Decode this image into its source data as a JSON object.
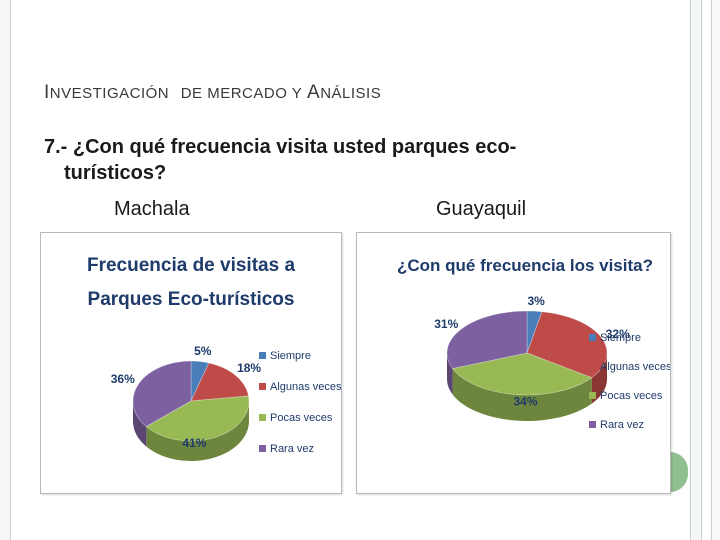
{
  "header": {
    "title_part1_cap": "I",
    "title_part1_rest": "NVESTIGACIÓN",
    "title_part2": "DE MERCADO Y",
    "title_part3_cap": "A",
    "title_part3_rest": "NÁLISIS"
  },
  "question": {
    "line1": "7.- ¿Con qué frecuencia visita usted parques eco-",
    "line2": "turísticos?"
  },
  "cities": {
    "left": "Machala",
    "right": "Guayaquil"
  },
  "chart_data": [
    {
      "type": "pie",
      "title_lines": [
        "Frecuencia de visitas a",
        "Parques Eco-turísticos"
      ],
      "categories": [
        "Siempre",
        "Algunas veces",
        "Pocas veces",
        "Rara vez"
      ],
      "values": [
        5,
        18,
        41,
        36
      ],
      "labels": [
        "5%",
        "18%",
        "41%",
        "36%"
      ],
      "colors": [
        "#4a7ebb",
        "#be4b48",
        "#98b954",
        "#7d60a0"
      ],
      "legend_position": "right"
    },
    {
      "type": "pie",
      "title_lines": [
        "¿Con qué frecuencia los visita?"
      ],
      "categories": [
        "Siempre",
        "Algunas veces",
        "Pocas veces",
        "Rara vez"
      ],
      "values": [
        3,
        32,
        34,
        31
      ],
      "labels": [
        "3%",
        "32%",
        "34%",
        "31%"
      ],
      "colors": [
        "#4a7ebb",
        "#be4b48",
        "#98b954",
        "#7d60a0"
      ],
      "legend_position": "right"
    }
  ]
}
